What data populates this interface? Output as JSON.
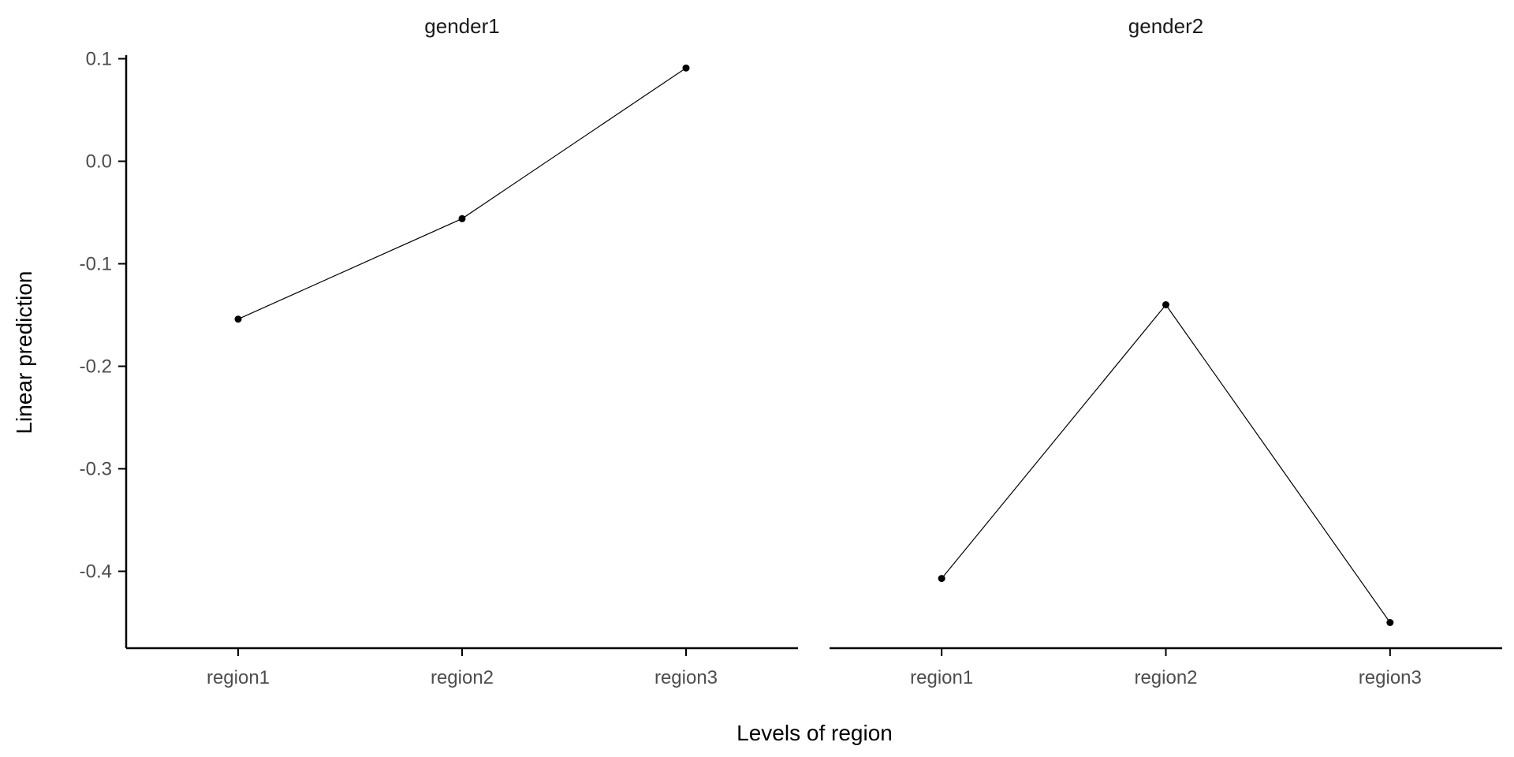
{
  "chart_data": {
    "type": "line",
    "xlabel": "Levels of region",
    "ylabel": "Linear prediction",
    "ylim": [
      -0.475,
      0.115
    ],
    "yticks": [
      0.1,
      0.0,
      -0.1,
      -0.2,
      -0.3,
      -0.4
    ],
    "ytick_labels": [
      "0.1",
      "0.0",
      "-0.1",
      "-0.2",
      "-0.3",
      "-0.4"
    ],
    "categories": [
      "region1",
      "region2",
      "region3"
    ],
    "grid": false,
    "panels": [
      {
        "title": "gender1",
        "values": [
          -0.154,
          -0.056,
          0.091
        ]
      },
      {
        "title": "gender2",
        "values": [
          -0.407,
          -0.14,
          -0.45
        ]
      }
    ]
  }
}
